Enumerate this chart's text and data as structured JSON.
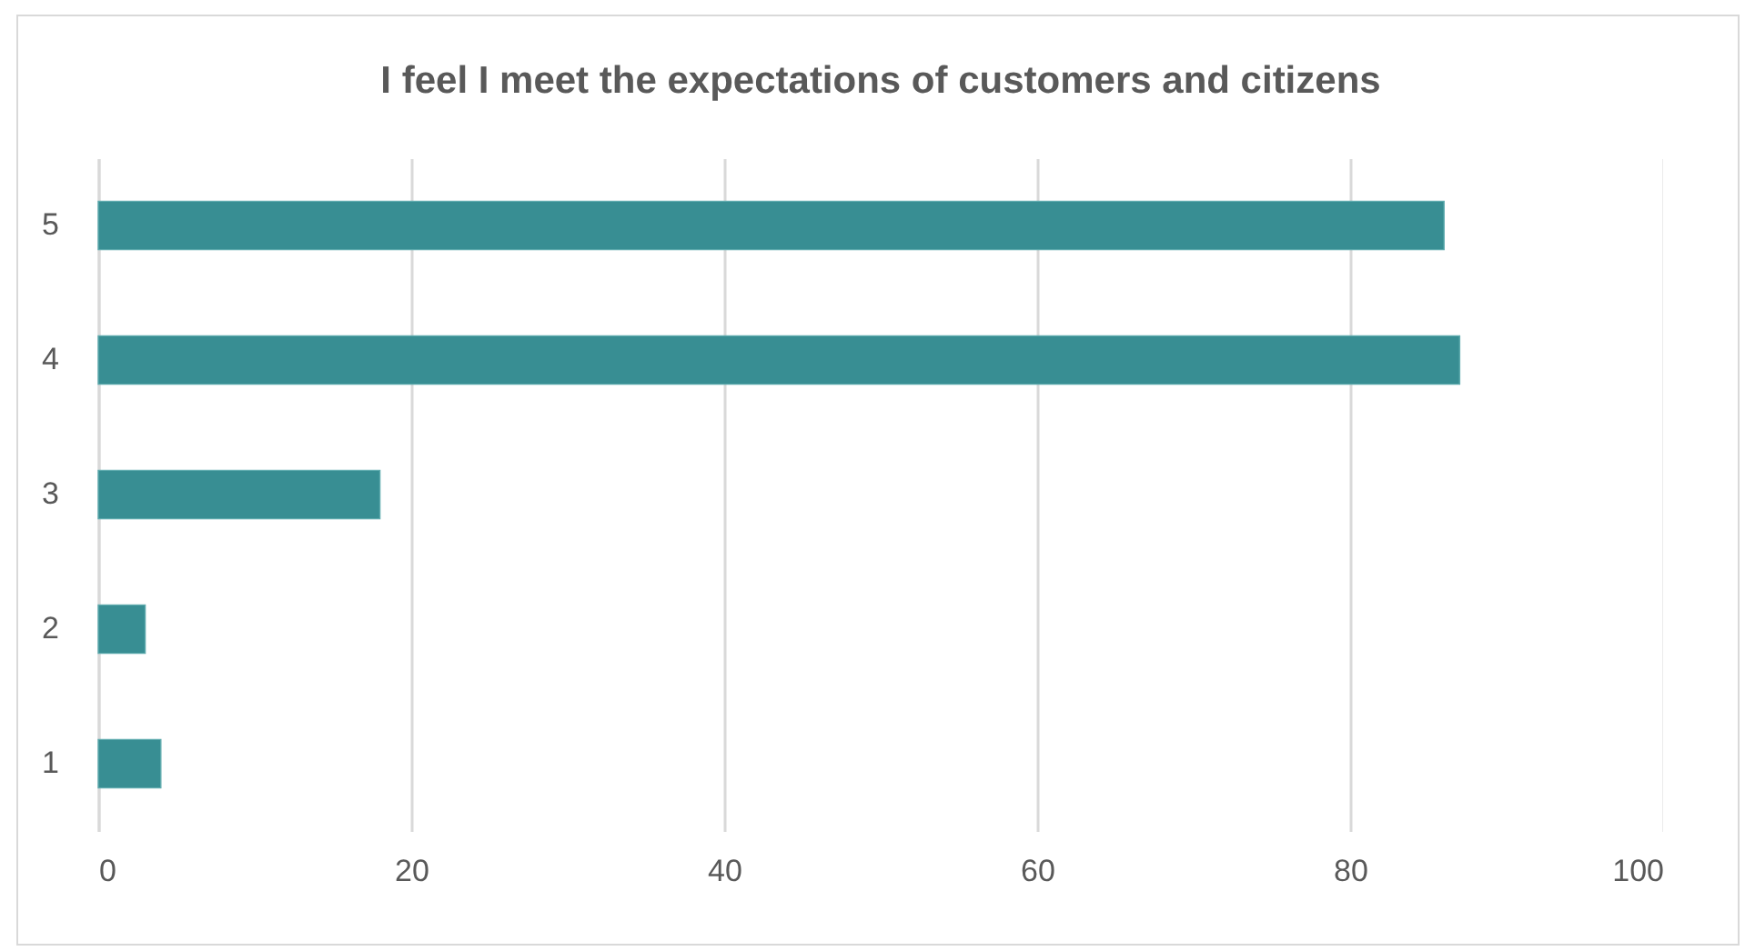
{
  "chart_data": {
    "type": "bar",
    "orientation": "horizontal",
    "title": "I feel I meet the expectations of customers and citizens",
    "categories": [
      "5",
      "4",
      "3",
      "2",
      "1"
    ],
    "values": [
      86,
      87,
      18,
      3,
      4
    ],
    "color": "#388e93",
    "xlim": [
      0,
      100
    ],
    "xticks": [
      0,
      20,
      40,
      60,
      80,
      100
    ],
    "grid": "x"
  }
}
